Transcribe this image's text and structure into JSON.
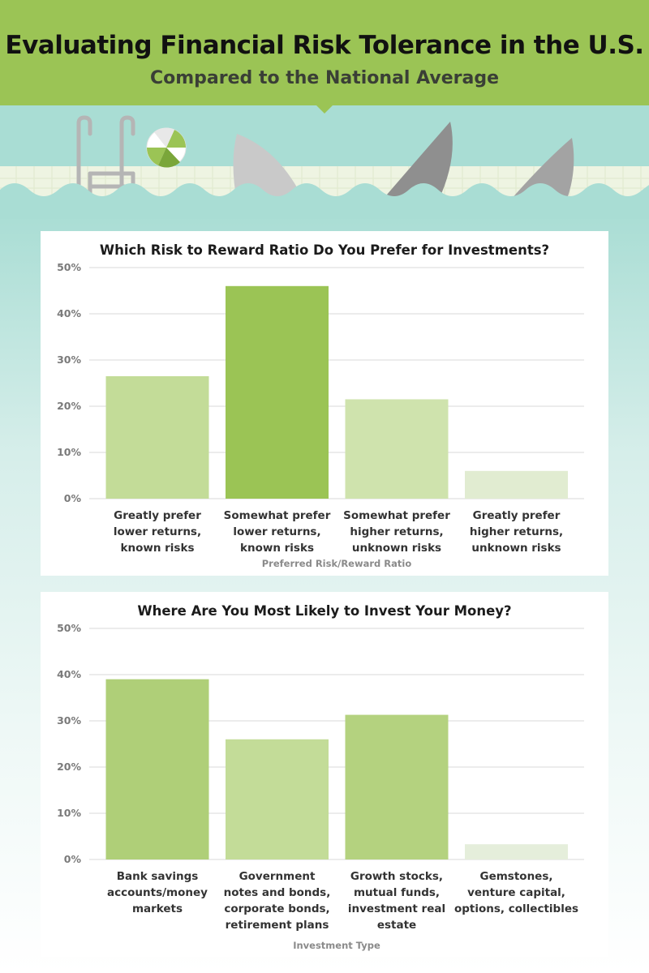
{
  "header": {
    "title": "Evaluating Financial Risk Tolerance in the U.S.",
    "subtitle": "Compared to the National Average",
    "background_color": "#9bc455"
  },
  "illustration": {
    "icons": [
      "pool-ladder-icon",
      "beach-ball-icon",
      "shark-fin-icon",
      "shark-fin-icon",
      "shark-fin-icon"
    ],
    "water_color": "#a9ddd4"
  },
  "chart_data": [
    {
      "type": "bar",
      "title": "Which Risk to Reward Ratio Do You Prefer for Investments?",
      "xlabel": "Preferred Risk/Reward Ratio",
      "ylabel": "",
      "categories": [
        "Greatly prefer lower returns, known risks",
        "Somewhat prefer lower returns, known risks",
        "Somewhat prefer higher returns, unknown risks",
        "Greatly prefer higher returns, unknown risks"
      ],
      "category_lines": [
        [
          "Greatly prefer",
          "lower returns,",
          "known risks"
        ],
        [
          "Somewhat prefer",
          "lower returns,",
          "known risks"
        ],
        [
          "Somewhat prefer",
          "higher returns,",
          "unknown risks"
        ],
        [
          "Greatly prefer",
          "higher returns,",
          "unknown risks"
        ]
      ],
      "values": [
        26.5,
        46,
        21.5,
        6
      ],
      "colors": [
        "#c3dc98",
        "#9bc455",
        "#cfe3ad",
        "#e1ecd1"
      ],
      "yticks": [
        "0%",
        "10%",
        "20%",
        "30%",
        "40%",
        "50%"
      ],
      "ylim": [
        0,
        50
      ],
      "grid": true,
      "legend": "none"
    },
    {
      "type": "bar",
      "title": "Where Are You Most Likely to Invest Your Money?",
      "xlabel": "Investment Type",
      "ylabel": "",
      "categories": [
        "Bank savings accounts/money markets",
        "Government notes and bonds, corporate bonds, retirement plans",
        "Growth stocks, mutual funds, investment real estate",
        "Gemstones, venture capital, options, collectibles"
      ],
      "category_lines": [
        [
          "Bank savings",
          "accounts/money",
          "markets"
        ],
        [
          "Government",
          "notes and bonds,",
          "corporate bonds,",
          "retirement plans"
        ],
        [
          "Growth stocks,",
          "mutual funds,",
          "investment real",
          "estate"
        ],
        [
          "Gemstones,",
          "venture capital,",
          "options, collectibles"
        ]
      ],
      "values": [
        39,
        26,
        31.3,
        3.3
      ],
      "colors": [
        "#afcf78",
        "#c3dc98",
        "#b4d27f",
        "#e5eedb"
      ],
      "yticks": [
        "0%",
        "10%",
        "20%",
        "30%",
        "40%",
        "50%"
      ],
      "ylim": [
        0,
        50
      ],
      "grid": true,
      "legend": "none"
    }
  ]
}
